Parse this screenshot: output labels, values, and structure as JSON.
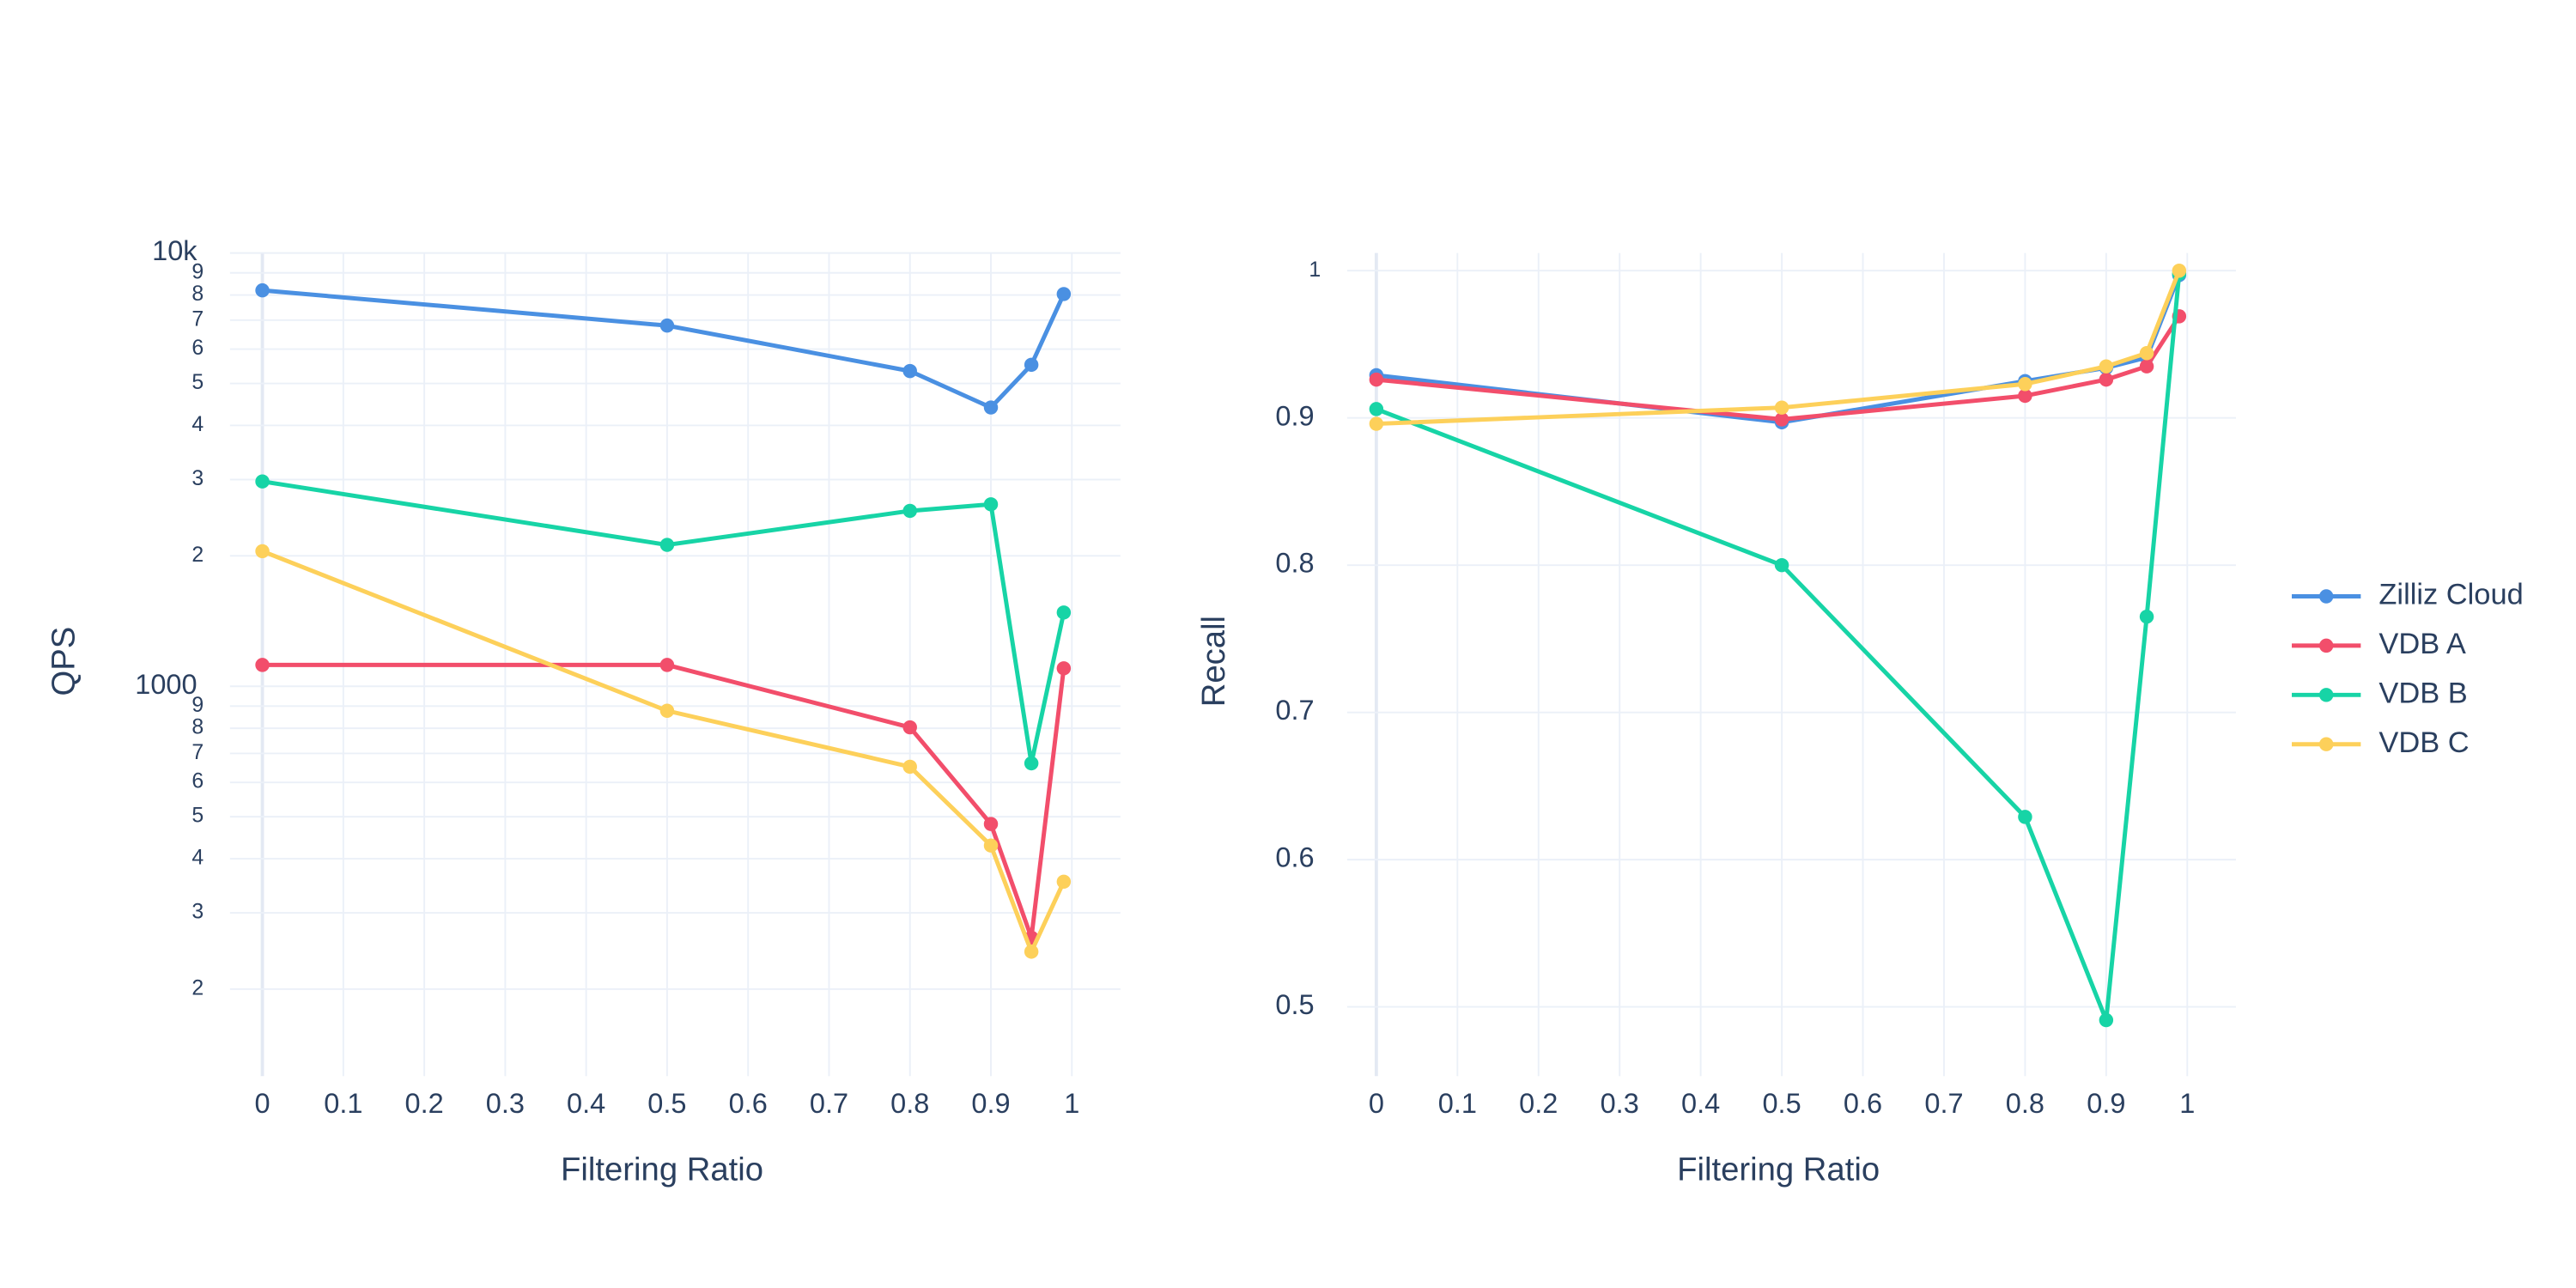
{
  "chart_data": [
    {
      "type": "line",
      "log_y": true,
      "grid": true,
      "legend": "right",
      "x_title": "Filtering Ratio",
      "y_title": "QPS",
      "x": [
        0,
        0.5,
        0.8,
        0.9,
        0.95,
        0.99
      ],
      "xlim": [
        -0.04,
        1.06
      ],
      "xticks": [
        0,
        0.1,
        0.2,
        0.3,
        0.4,
        0.5,
        0.6,
        0.7,
        0.8,
        0.9,
        1
      ],
      "ylim": [
        126,
        10000
      ],
      "yticks": [
        {
          "value": 10000,
          "label": "10k"
        },
        {
          "value": 9000,
          "label": "9"
        },
        {
          "value": 8000,
          "label": "8"
        },
        {
          "value": 7000,
          "label": "7"
        },
        {
          "value": 6000,
          "label": "6"
        },
        {
          "value": 5000,
          "label": "5"
        },
        {
          "value": 4000,
          "label": "4"
        },
        {
          "value": 3000,
          "label": "3"
        },
        {
          "value": 2000,
          "label": "2"
        },
        1000,
        {
          "value": 900,
          "label": "9"
        },
        {
          "value": 800,
          "label": "8"
        },
        {
          "value": 700,
          "label": "7"
        },
        {
          "value": 600,
          "label": "6"
        },
        {
          "value": 500,
          "label": "5"
        },
        {
          "value": 400,
          "label": "4"
        },
        {
          "value": 300,
          "label": "3"
        },
        {
          "value": 200,
          "label": "2"
        }
      ],
      "series": [
        {
          "name": "Zilliz Cloud",
          "color": "#4a90e2",
          "values": [
            8200,
            6800,
            5340,
            4400,
            5520,
            8040
          ]
        },
        {
          "name": "VDB A",
          "color": "#f24e6b",
          "values": [
            1120,
            1120,
            804,
            481,
            263,
            1100
          ]
        },
        {
          "name": "VDB B",
          "color": "#17d4a6",
          "values": [
            2970,
            2120,
            2540,
            2630,
            664,
            1480
          ]
        },
        {
          "name": "VDB C",
          "color": "#fdd05a",
          "values": [
            2050,
            878,
            652,
            429,
            244,
            354
          ]
        }
      ]
    },
    {
      "type": "line",
      "log_y": false,
      "grid": true,
      "x_title": "Filtering Ratio",
      "y_title": "Recall",
      "x": [
        0,
        0.5,
        0.8,
        0.9,
        0.95,
        0.99
      ],
      "xlim": [
        -0.036,
        1.06
      ],
      "xticks": [
        0,
        0.1,
        0.2,
        0.3,
        0.4,
        0.5,
        0.6,
        0.7,
        0.8,
        0.9,
        1
      ],
      "ylim": [
        0.453,
        1.012
      ],
      "yticks": [
        0.5,
        0.6,
        0.7,
        0.8,
        0.9,
        1
      ],
      "series": [
        {
          "values": [
            0.929,
            0.897,
            0.925,
            0.934,
            0.941,
            0.997
          ]
        },
        {
          "values": [
            0.926,
            0.899,
            0.915,
            0.926,
            0.935,
            0.969
          ]
        },
        {
          "values": [
            0.906,
            0.8,
            0.629,
            0.491,
            0.765,
            0.998
          ]
        },
        {
          "values": [
            0.896,
            0.907,
            0.923,
            0.935,
            0.944,
            1
          ]
        }
      ]
    }
  ]
}
